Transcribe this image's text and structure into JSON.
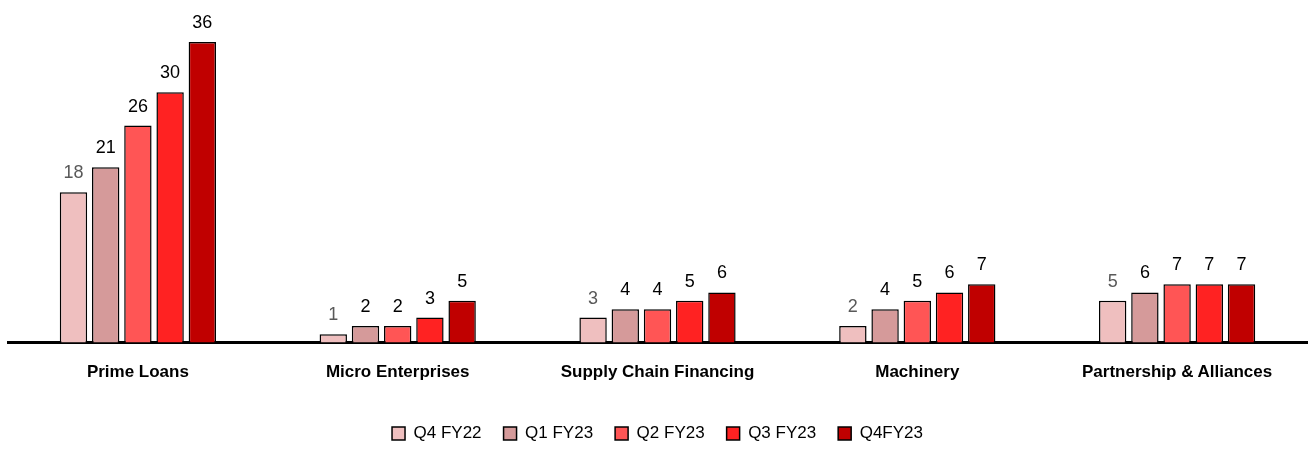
{
  "chart_data": {
    "type": "bar",
    "categories": [
      "Prime Loans",
      "Micro Enterprises",
      "Supply Chain Financing",
      "Machinery",
      "Partnership & Alliances"
    ],
    "series": [
      {
        "name": "Q4 FY22",
        "color": "#efbfbf",
        "values": [
          18,
          1,
          3,
          2,
          5
        ]
      },
      {
        "name": "Q1 FY23",
        "color": "#d59a9a",
        "values": [
          21,
          2,
          4,
          4,
          6
        ]
      },
      {
        "name": "Q2 FY23",
        "color": "#ff5555",
        "values": [
          26,
          2,
          4,
          5,
          7
        ]
      },
      {
        "name": "Q3 FY23",
        "color": "#ff2222",
        "values": [
          30,
          3,
          5,
          6,
          7
        ]
      },
      {
        "name": "Q4FY23",
        "color": "#c00000",
        "values": [
          36,
          5,
          6,
          7,
          7
        ]
      }
    ],
    "data_labels": true,
    "grid": false,
    "legend": "bottom"
  }
}
